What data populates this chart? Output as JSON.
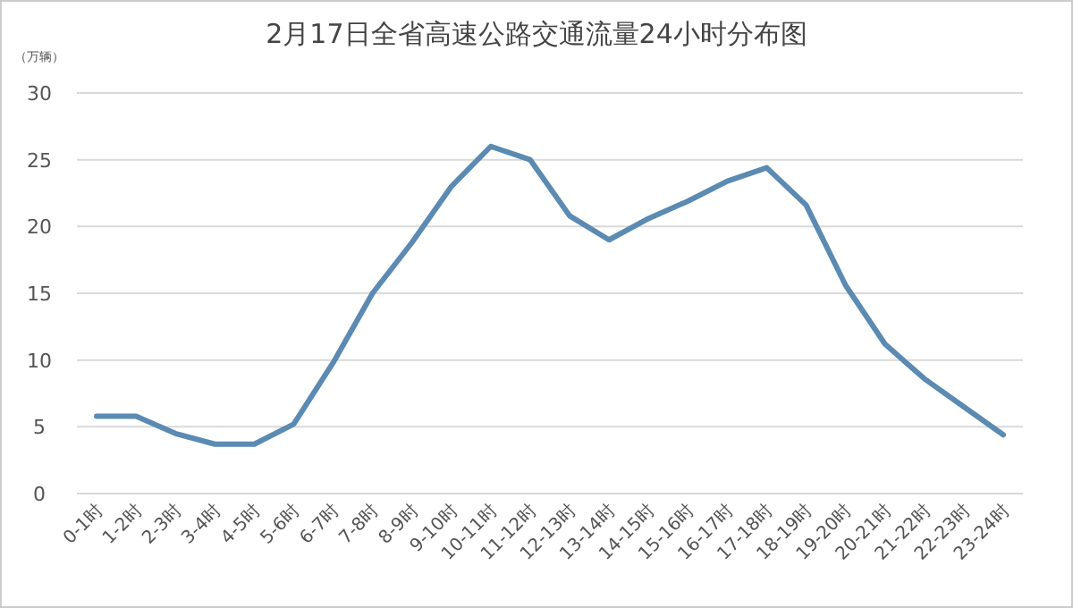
{
  "chart_data": {
    "type": "line",
    "title": "2月17日全省高速公路交通流量24小时分布图",
    "ylabel": "（万辆）",
    "categories": [
      "0-1时",
      "1-2时",
      "2-3时",
      "3-4时",
      "4-5时",
      "5-6时",
      "6-7时",
      "7-8时",
      "8-9时",
      "9-10时",
      "10-11时",
      "11-12时",
      "12-13时",
      "13-14时",
      "14-15时",
      "15-16时",
      "16-17时",
      "17-18时",
      "18-19时",
      "19-20时",
      "20-21时",
      "21-22时",
      "22-23时",
      "23-24时"
    ],
    "series": [
      {
        "color": "#5b8ab2",
        "values": [
          5.8,
          5.8,
          4.5,
          3.7,
          3.7,
          5.2,
          9.8,
          15,
          18.8,
          23,
          26,
          25,
          20.8,
          19,
          20.6,
          21.9,
          23.4,
          24.4,
          21.6,
          15.6,
          11.2,
          8.6,
          6.5,
          4.4
        ]
      }
    ],
    "ylim": [
      0,
      30
    ],
    "yticks": [
      0,
      5,
      10,
      15,
      20,
      25,
      30
    ],
    "grid": "y",
    "marker": "none",
    "line_style": "solid"
  }
}
